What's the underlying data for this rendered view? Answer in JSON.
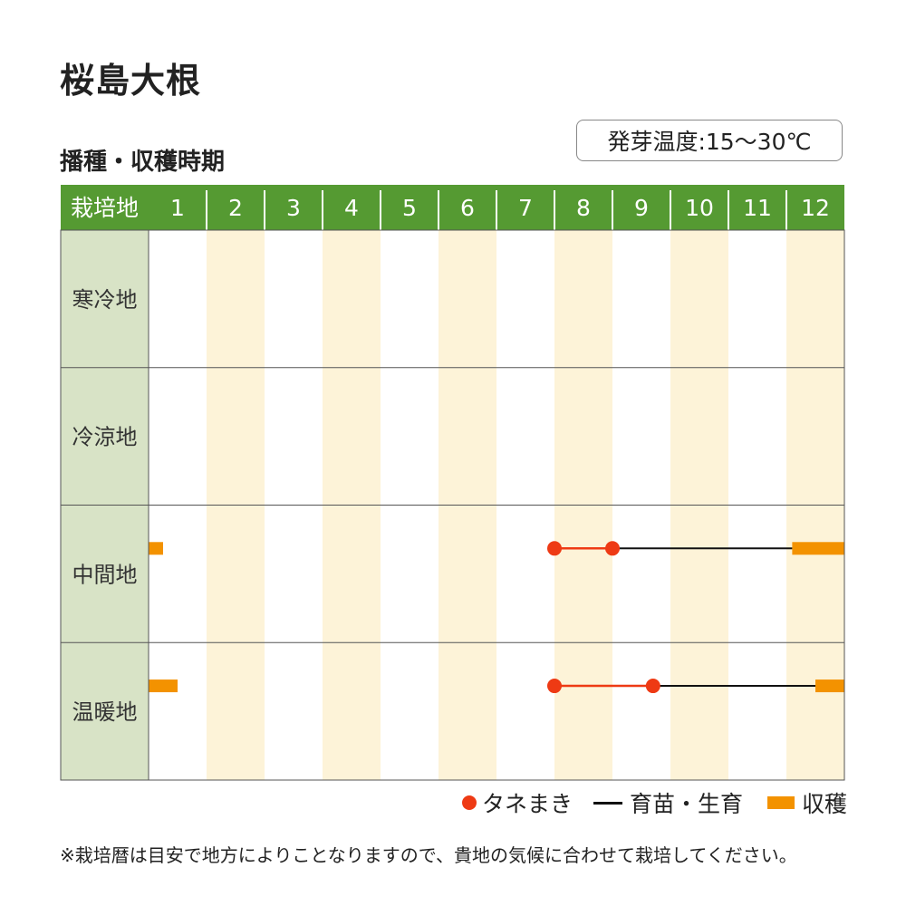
{
  "title": "桜島大根",
  "subtitle": "播種・収穫時期",
  "temperature_label": "発芽温度:15〜30℃",
  "header_label": "栽培地",
  "colors": {
    "header_bg": "#559a32",
    "region_bg": "#d8e3c6",
    "stripe": "#fdf3d8",
    "sowing": "#ee3a14",
    "growing": "#111111",
    "harvest": "#f39200"
  },
  "legend": {
    "sowing": "タネまき",
    "growing": "育苗・生育",
    "harvest": "収穫"
  },
  "note": "※栽培暦は目安で地方によりことなりますので、貴地の気候に合わせて栽培してください。",
  "chart_data": {
    "type": "gantt",
    "x_unit": "month",
    "x": [
      "1",
      "2",
      "3",
      "4",
      "5",
      "6",
      "7",
      "8",
      "9",
      "10",
      "11",
      "12"
    ],
    "highlighted_months": [
      2,
      4,
      6,
      8,
      10,
      12
    ],
    "rows": [
      {
        "region": "寒冷地",
        "sowing": null,
        "growing": null,
        "harvest": []
      },
      {
        "region": "冷涼地",
        "sowing": null,
        "growing": null,
        "harvest": []
      },
      {
        "region": "中間地",
        "sowing": [
          8.0,
          9.0
        ],
        "growing": [
          9.0,
          12.1
        ],
        "harvest": [
          [
            1.0,
            1.25
          ],
          [
            12.1,
            13.0
          ]
        ]
      },
      {
        "region": "温暖地",
        "sowing": [
          8.0,
          9.7
        ],
        "growing": [
          9.7,
          12.5
        ],
        "harvest": [
          [
            1.0,
            1.5
          ],
          [
            12.5,
            13.0
          ]
        ]
      }
    ]
  }
}
